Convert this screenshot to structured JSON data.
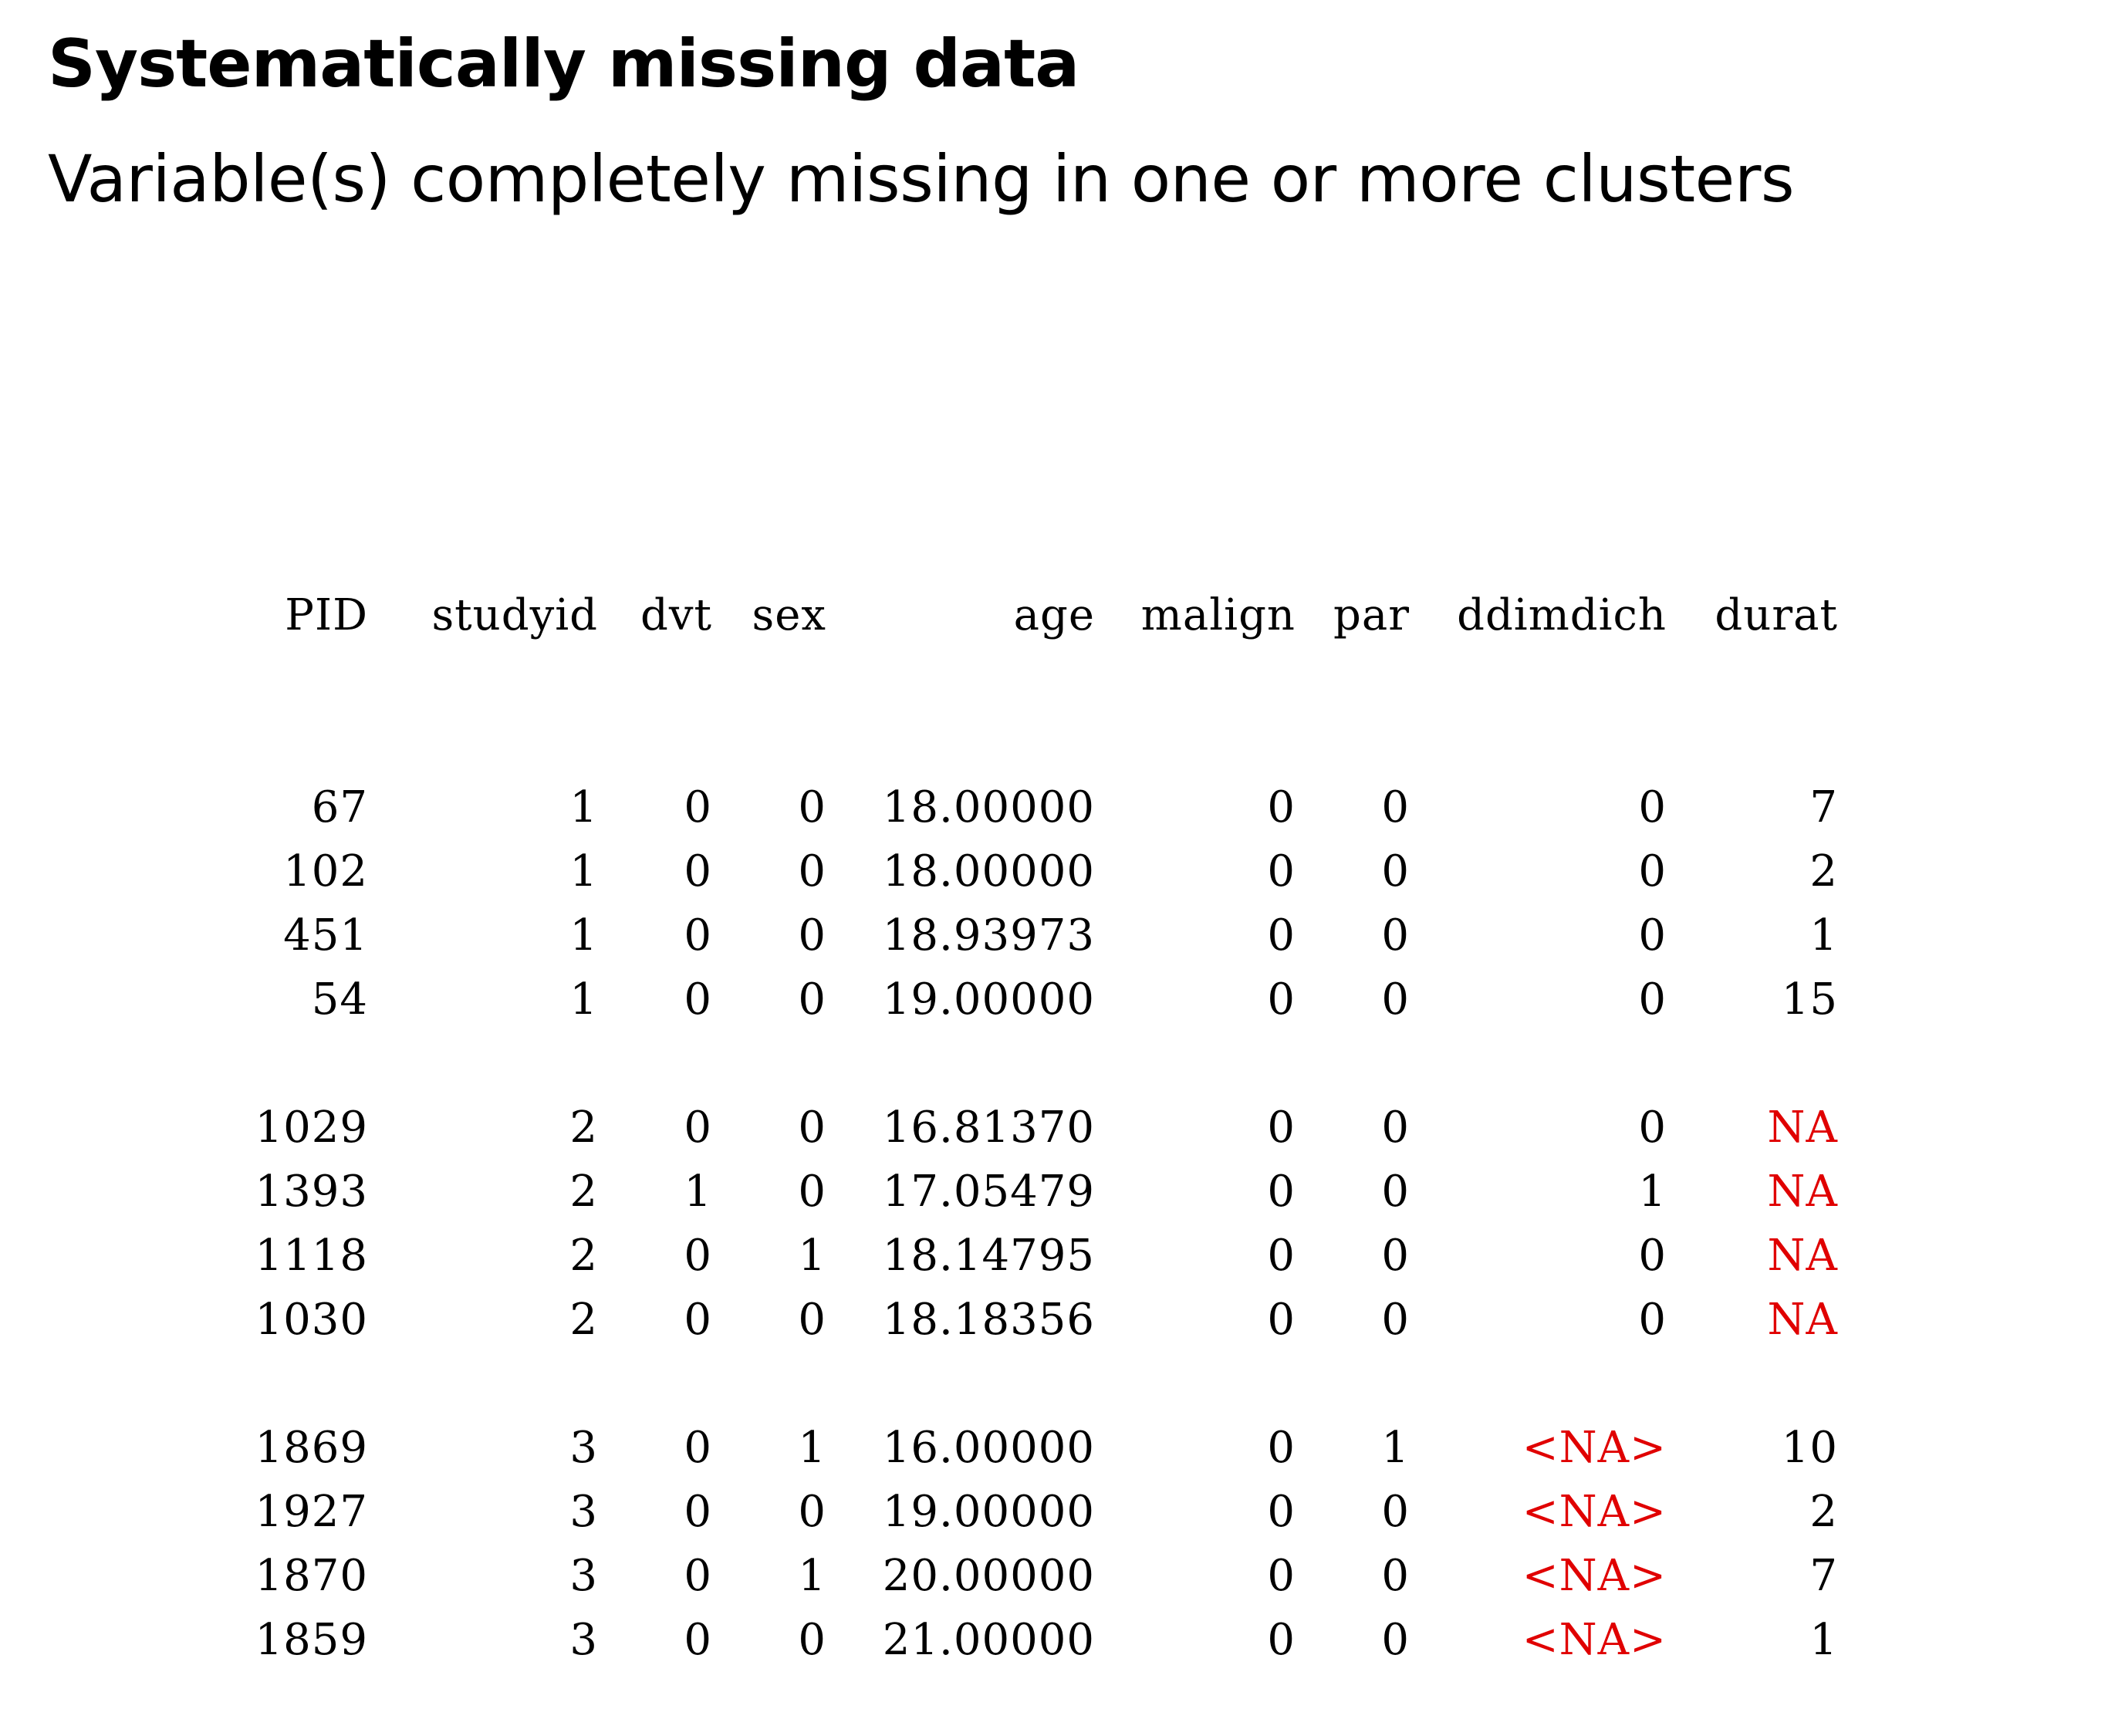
{
  "slide": {
    "title": "Systematically missing data",
    "subtitle": "Variable(s) completely missing in one or more clusters"
  },
  "table": {
    "columns": [
      "PID",
      "studyid",
      "dvt",
      "sex",
      "age",
      "malign",
      "par",
      "ddimdich",
      "durat"
    ],
    "groups": [
      [
        [
          "67",
          "1",
          "0",
          "0",
          "18.00000",
          "0",
          "0",
          "0",
          "7"
        ],
        [
          "102",
          "1",
          "0",
          "0",
          "18.00000",
          "0",
          "0",
          "0",
          "2"
        ],
        [
          "451",
          "1",
          "0",
          "0",
          "18.93973",
          "0",
          "0",
          "0",
          "1"
        ],
        [
          "54",
          "1",
          "0",
          "0",
          "19.00000",
          "0",
          "0",
          "0",
          "15"
        ]
      ],
      [
        [
          "1029",
          "2",
          "0",
          "0",
          "16.81370",
          "0",
          "0",
          "0",
          "NA"
        ],
        [
          "1393",
          "2",
          "1",
          "0",
          "17.05479",
          "0",
          "0",
          "1",
          "NA"
        ],
        [
          "1118",
          "2",
          "0",
          "1",
          "18.14795",
          "0",
          "0",
          "0",
          "NA"
        ],
        [
          "1030",
          "2",
          "0",
          "0",
          "18.18356",
          "0",
          "0",
          "0",
          "NA"
        ]
      ],
      [
        [
          "1869",
          "3",
          "0",
          "1",
          "16.00000",
          "0",
          "1",
          "<NA>",
          "10"
        ],
        [
          "1927",
          "3",
          "0",
          "0",
          "19.00000",
          "0",
          "0",
          "<NA>",
          "2"
        ],
        [
          "1870",
          "3",
          "0",
          "1",
          "20.00000",
          "0",
          "0",
          "<NA>",
          "7"
        ],
        [
          "1859",
          "3",
          "0",
          "0",
          "21.00000",
          "0",
          "0",
          "<NA>",
          "1"
        ]
      ]
    ],
    "missing_color": "#e00000"
  }
}
